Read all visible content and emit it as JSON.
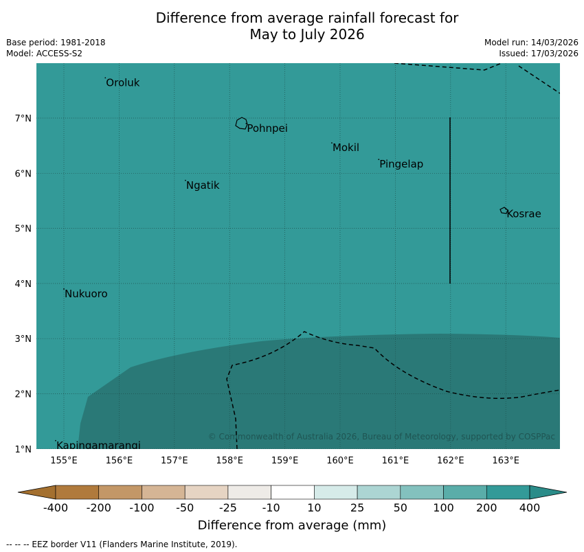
{
  "title_line1": "Difference from average rainfall forecast for",
  "title_line2": "May to July 2026",
  "meta_left": {
    "base_period": "Base period: 1981-2018",
    "model": "Model: ACCESS-S2"
  },
  "meta_right": {
    "model_run": "Model run: 14/03/2026",
    "issued": "Issued: 17/03/2026"
  },
  "map": {
    "lon_ticks": [
      "155°E",
      "156°E",
      "157°E",
      "158°E",
      "159°E",
      "160°E",
      "161°E",
      "162°E",
      "163°E"
    ],
    "lat_ticks": [
      "7°N",
      "6°N",
      "5°N",
      "4°N",
      "3°N",
      "2°N",
      "1°N"
    ],
    "places": [
      {
        "name": "Oroluk",
        "lon": 155.75,
        "lat": 7.68
      },
      {
        "name": "Pohnpei",
        "lon": 158.3,
        "lat": 6.85
      },
      {
        "name": "Mokil",
        "lon": 159.85,
        "lat": 6.5
      },
      {
        "name": "Pingelap",
        "lon": 160.7,
        "lat": 6.2
      },
      {
        "name": "Ngatik",
        "lon": 157.2,
        "lat": 5.82
      },
      {
        "name": "Kosrae",
        "lon": 163.0,
        "lat": 5.3
      },
      {
        "name": "Nukuoro",
        "lon": 155.0,
        "lat": 3.85
      },
      {
        "name": "Kapingamarangi",
        "lon": 154.85,
        "lat": 1.1
      }
    ],
    "base_color": "#339a98",
    "inner_color": "#2a7977",
    "copyright": "© Commonwealth of Australia 2026, Bureau of Meteorology, supported by COSPPac"
  },
  "colorbar": {
    "colors": [
      "#b07a3c",
      "#c39767",
      "#d5b595",
      "#e6d4c3",
      "#eeebe7",
      "#ffffff",
      "#d6ebe9",
      "#acd5d3",
      "#83c1be",
      "#5aada9",
      "#339a98"
    ],
    "ticks": [
      "-400",
      "-200",
      "-100",
      "-50",
      "-25",
      "-10",
      "10",
      "25",
      "50",
      "100",
      "200",
      "400"
    ],
    "label": "Difference from average (mm)"
  },
  "footnote": "--  --  -- EEZ border V11 (Flanders Marine Institute, 2019)."
}
